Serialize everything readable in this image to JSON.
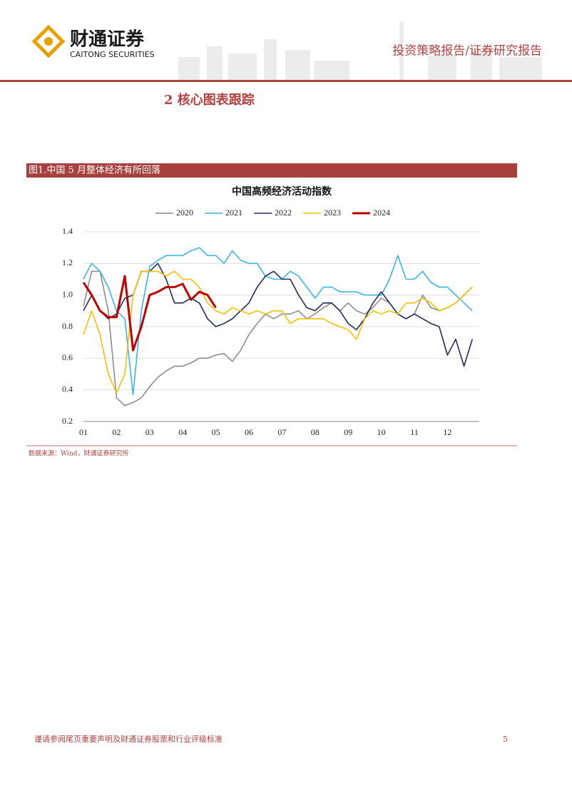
{
  "header": {
    "logo": "财通证券",
    "logo_en": "CAITONG SECURITIES",
    "report_type": "投资策略报告/证券研究报告"
  },
  "section_title": "2   核心图表跟踪",
  "figure_caption": "图1.中国 5 月整体经济有所回落",
  "chart_data": {
    "type": "line",
    "title": "中国高频经济活动指数",
    "categories": [
      "01",
      null,
      null,
      null,
      "02",
      null,
      null,
      null,
      "03",
      null,
      null,
      null,
      "04",
      null,
      null,
      null,
      "05",
      null,
      null,
      null,
      "06",
      null,
      null,
      null,
      "07",
      null,
      null,
      null,
      "08",
      null,
      null,
      null,
      "09",
      null,
      null,
      null,
      "10",
      null,
      null,
      null,
      "11",
      null,
      null,
      null,
      "12",
      null,
      null,
      null
    ],
    "series": [
      {
        "name": "2020",
        "color": "#8c8c8c",
        "values": [
          0.93,
          1.15,
          1.15,
          0.9,
          0.35,
          0.3,
          0.32,
          0.35,
          0.42,
          0.48,
          0.52,
          0.55,
          0.55,
          0.57,
          0.6,
          0.6,
          0.62,
          0.63,
          0.58,
          0.65,
          0.75,
          0.82,
          0.88,
          0.85,
          0.88,
          0.88,
          0.9,
          0.85,
          0.88,
          0.92,
          0.95,
          0.9,
          0.95,
          0.9,
          0.88,
          0.92,
          0.98,
          0.95,
          0.88,
          0.85,
          0.88,
          1.0,
          0.92,
          0.9,
          0.92,
          0.95,
          1.0,
          1.05
        ]
      },
      {
        "name": "2021",
        "color": "#3cb4e5",
        "values": [
          1.1,
          1.2,
          1.15,
          1.05,
          0.9,
          0.85,
          0.37,
          0.9,
          1.18,
          1.22,
          1.25,
          1.25,
          1.25,
          1.28,
          1.3,
          1.25,
          1.25,
          1.2,
          1.28,
          1.22,
          1.2,
          1.2,
          1.12,
          1.1,
          1.1,
          1.15,
          1.12,
          1.05,
          0.98,
          1.05,
          1.05,
          1.02,
          1.02,
          1.02,
          1.0,
          1.0,
          1.0,
          1.1,
          1.25,
          1.1,
          1.1,
          1.15,
          1.08,
          1.05,
          1.05,
          1.0,
          0.95,
          0.9
        ]
      },
      {
        "name": "2022",
        "color": "#1f2d5c",
        "values": [
          0.9,
          1.0,
          0.9,
          0.85,
          0.88,
          0.98,
          1.0,
          1.15,
          1.15,
          1.2,
          1.1,
          0.95,
          0.95,
          0.98,
          0.95,
          0.85,
          0.8,
          0.82,
          0.85,
          0.9,
          0.95,
          1.05,
          1.12,
          1.15,
          1.1,
          1.1,
          1.0,
          0.92,
          0.9,
          0.95,
          0.95,
          0.9,
          0.82,
          0.78,
          0.85,
          0.95,
          1.02,
          0.95,
          0.88,
          0.85,
          0.88,
          0.85,
          0.82,
          0.8,
          0.62,
          0.72,
          0.55,
          0.72
        ]
      },
      {
        "name": "2023",
        "color": "#f5c000",
        "values": [
          0.75,
          0.9,
          0.75,
          0.5,
          0.38,
          0.5,
          1.0,
          1.15,
          1.15,
          1.15,
          1.12,
          1.15,
          1.1,
          1.1,
          1.05,
          0.95,
          0.9,
          0.88,
          0.92,
          0.9,
          0.88,
          0.9,
          0.88,
          0.9,
          0.9,
          0.82,
          0.85,
          0.85,
          0.85,
          0.85,
          0.82,
          0.8,
          0.78,
          0.72,
          0.85,
          0.9,
          0.88,
          0.9,
          0.88,
          0.95,
          0.95,
          0.98,
          0.95,
          0.9,
          0.92,
          0.95,
          1.0,
          1.05
        ]
      },
      {
        "name": "2024",
        "color": "#c00000",
        "values": [
          1.08,
          1.0,
          0.9,
          0.86,
          0.86,
          1.12,
          0.65,
          0.8,
          1.0,
          1.02,
          1.05,
          1.05,
          1.07,
          0.97,
          1.02,
          1.0,
          0.92,
          null,
          null,
          null,
          null,
          null,
          null,
          null,
          null,
          null,
          null,
          null,
          null,
          null,
          null,
          null,
          null,
          null,
          null,
          null,
          null,
          null,
          null,
          null,
          null,
          null,
          null,
          null,
          null,
          null,
          null,
          null
        ]
      }
    ],
    "ylim": [
      0.2,
      1.4
    ],
    "yticks": [
      0.2,
      0.4,
      0.6,
      0.8,
      {
        "value": 1,
        "label": "1.0"
      },
      1.2,
      1.4
    ],
    "legend": "top"
  },
  "source": "数据来源：Wind，财通证券研究所",
  "footer": {
    "disclaimer": "谨请参阅尾页重要声明及财通证券股票和行业评级标准",
    "page": "5"
  }
}
